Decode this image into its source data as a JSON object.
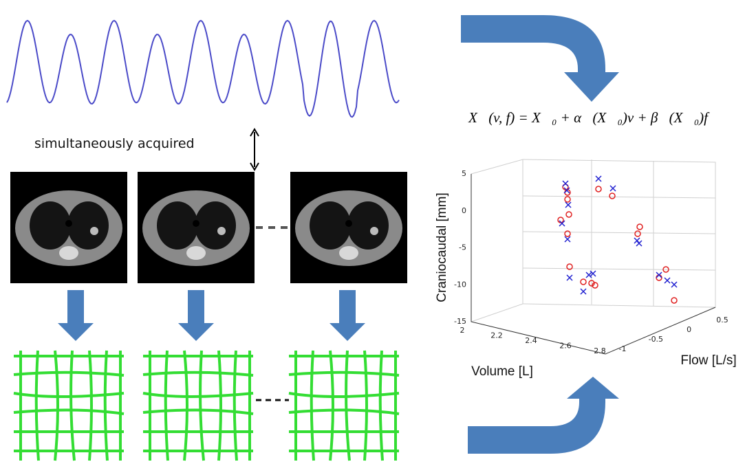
{
  "caption": "simultaneously acquired",
  "equation": "X⃗(v, f) = X⃗₀ + α⃗(X⃗₀)v + β⃗(X⃗₀)f",
  "plot": {
    "zlabel": "Craniocaudal [mm]",
    "xlabel": "Volume [L]",
    "ylabel": "Flow [L/s]",
    "zticks": [
      5,
      0,
      -5,
      -10,
      -15
    ],
    "xticks": [
      2,
      2.2,
      2.4,
      2.6,
      2.8
    ],
    "yticks": [
      -1,
      -0.5,
      0,
      0.5
    ]
  }
}
